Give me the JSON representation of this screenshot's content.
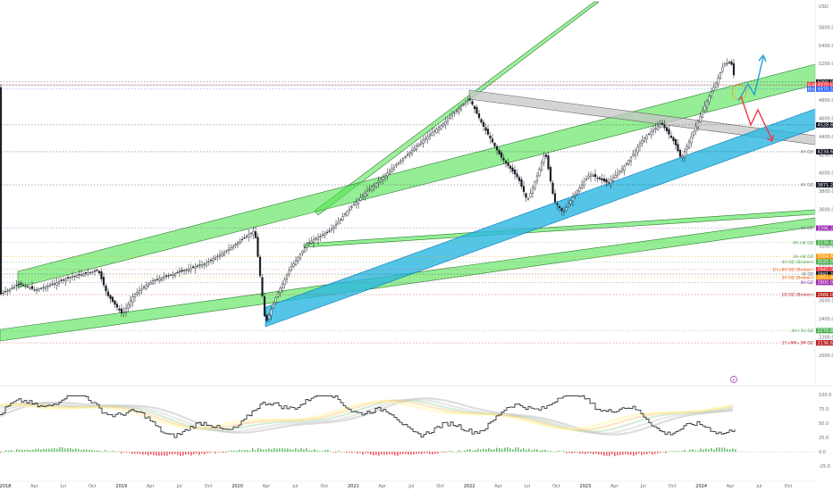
{
  "chart_data": {
    "type": "candlestick",
    "currency": "USD",
    "y_axis_ticks": [
      5600,
      5400,
      5200,
      5000,
      4800,
      4600,
      4400,
      4200,
      4000,
      3800,
      3600,
      3400,
      3200,
      3000,
      2800,
      2600,
      2400,
      2200,
      2000
    ],
    "ylim": [
      1900,
      5850
    ],
    "x_axis_labels": [
      "2018",
      "Apr",
      "Jul",
      "Oct",
      "2019",
      "Apr",
      "Jul",
      "Oct",
      "2020",
      "Apr",
      "Jul",
      "Oct",
      "2021",
      "Apr",
      "Jul",
      "Oct",
      "2022",
      "Apr",
      "Jul",
      "Oct",
      "2023",
      "Apr",
      "Jul",
      "Oct",
      "2024",
      "Apr",
      "Jul",
      "Oct"
    ],
    "price_tags": [
      {
        "label": "5000.0",
        "value": 5000.0,
        "color": "#131722"
      },
      {
        "label": "4970.6",
        "value": 4970.6,
        "color": "#f23645"
      },
      {
        "label": "4970.5",
        "value": 4922,
        "color": "#2962ff"
      },
      {
        "label": "4528.8",
        "value": 4528.8,
        "color": "#131722"
      },
      {
        "label": "4234.6",
        "value": 4234.6,
        "color": "#131722"
      },
      {
        "label": "3871.2",
        "value": 3871.2,
        "color": "#131722"
      },
      {
        "label": "3396.2",
        "value": 3396.2,
        "color": "#9c27b0"
      },
      {
        "label": "3236.4",
        "value": 3236.4,
        "color": "#4caf50"
      },
      {
        "label": "3084.6",
        "value": 3084.6,
        "color": "#ff9800"
      },
      {
        "label": "3025.0",
        "value": 3025.0,
        "color": "#4caf50"
      },
      {
        "label": "2942.0",
        "value": 2942.0,
        "color": "#f23645"
      },
      {
        "label": "2891.2",
        "value": 2891.2,
        "color": "#131722"
      },
      {
        "label": "2855.8",
        "value": 2855.8,
        "color": "#ff9800"
      },
      {
        "label": "2800.0",
        "value": 2800.0,
        "color": "#9c27b0"
      },
      {
        "label": "2666.0",
        "value": 2666.0,
        "color": "#b71c1c"
      },
      {
        "label": "2270.8",
        "value": 2270.8,
        "color": "#4caf50"
      },
      {
        "label": "2136.6",
        "value": 2136.6,
        "color": "#b71c1c"
      }
    ],
    "price_tag_prefixes": {
      "ask": "Ask",
      "bid": "Bid"
    },
    "demand_zones": [
      {
        "label": "4H DZ",
        "value": 4234.6,
        "color": "#6a6d78"
      },
      {
        "label": "4H DZ",
        "value": 3871.2,
        "color": "#6a6d78"
      },
      {
        "label": "4H DZ",
        "value": 3396.2,
        "color": "#6a6d78"
      },
      {
        "label": "4H+W DZ",
        "value": 3236.4,
        "color": "#43a047"
      },
      {
        "label": "2H+W DZ",
        "value": 3084.6,
        "color": "#43a047"
      },
      {
        "label": "4H DZ (Broken)",
        "value": 3025.0,
        "color": "#43a047"
      },
      {
        "label": "1H+6H DZ (Broken)",
        "value": 2942.0,
        "color": "#e65100"
      },
      {
        "label": "W DZ",
        "value": 2891.2,
        "color": "#6a6d78"
      },
      {
        "label": "3H DZ (Broken)",
        "value": 2855.8,
        "color": "#e65100"
      },
      {
        "label": "4H DZ",
        "value": 2800.0,
        "color": "#7b1fa2"
      },
      {
        "label": "1D DZ (Broken)",
        "value": 2666.0,
        "color": "#b71c1c"
      },
      {
        "label": "4H+3H DZ",
        "value": 2270.8,
        "color": "#43a047"
      },
      {
        "label": "1Y+6M+3M DZ",
        "value": 2136.6,
        "color": "#b71c1c"
      }
    ],
    "current_price": 4970.6,
    "oscillator": {
      "y_axis_ticks": [
        100.0,
        75.0,
        50.0,
        25.0,
        0.0,
        -25.0
      ],
      "ylim": [
        -40,
        112
      ]
    }
  },
  "colors": {
    "green_channel": "#4ee24e",
    "blue_channel": "#29b6e0",
    "grey_channel": "#c6c6c6",
    "candle": "#131722",
    "bullish_target": "#1e9fd4",
    "bearish_target": "#f23645"
  }
}
